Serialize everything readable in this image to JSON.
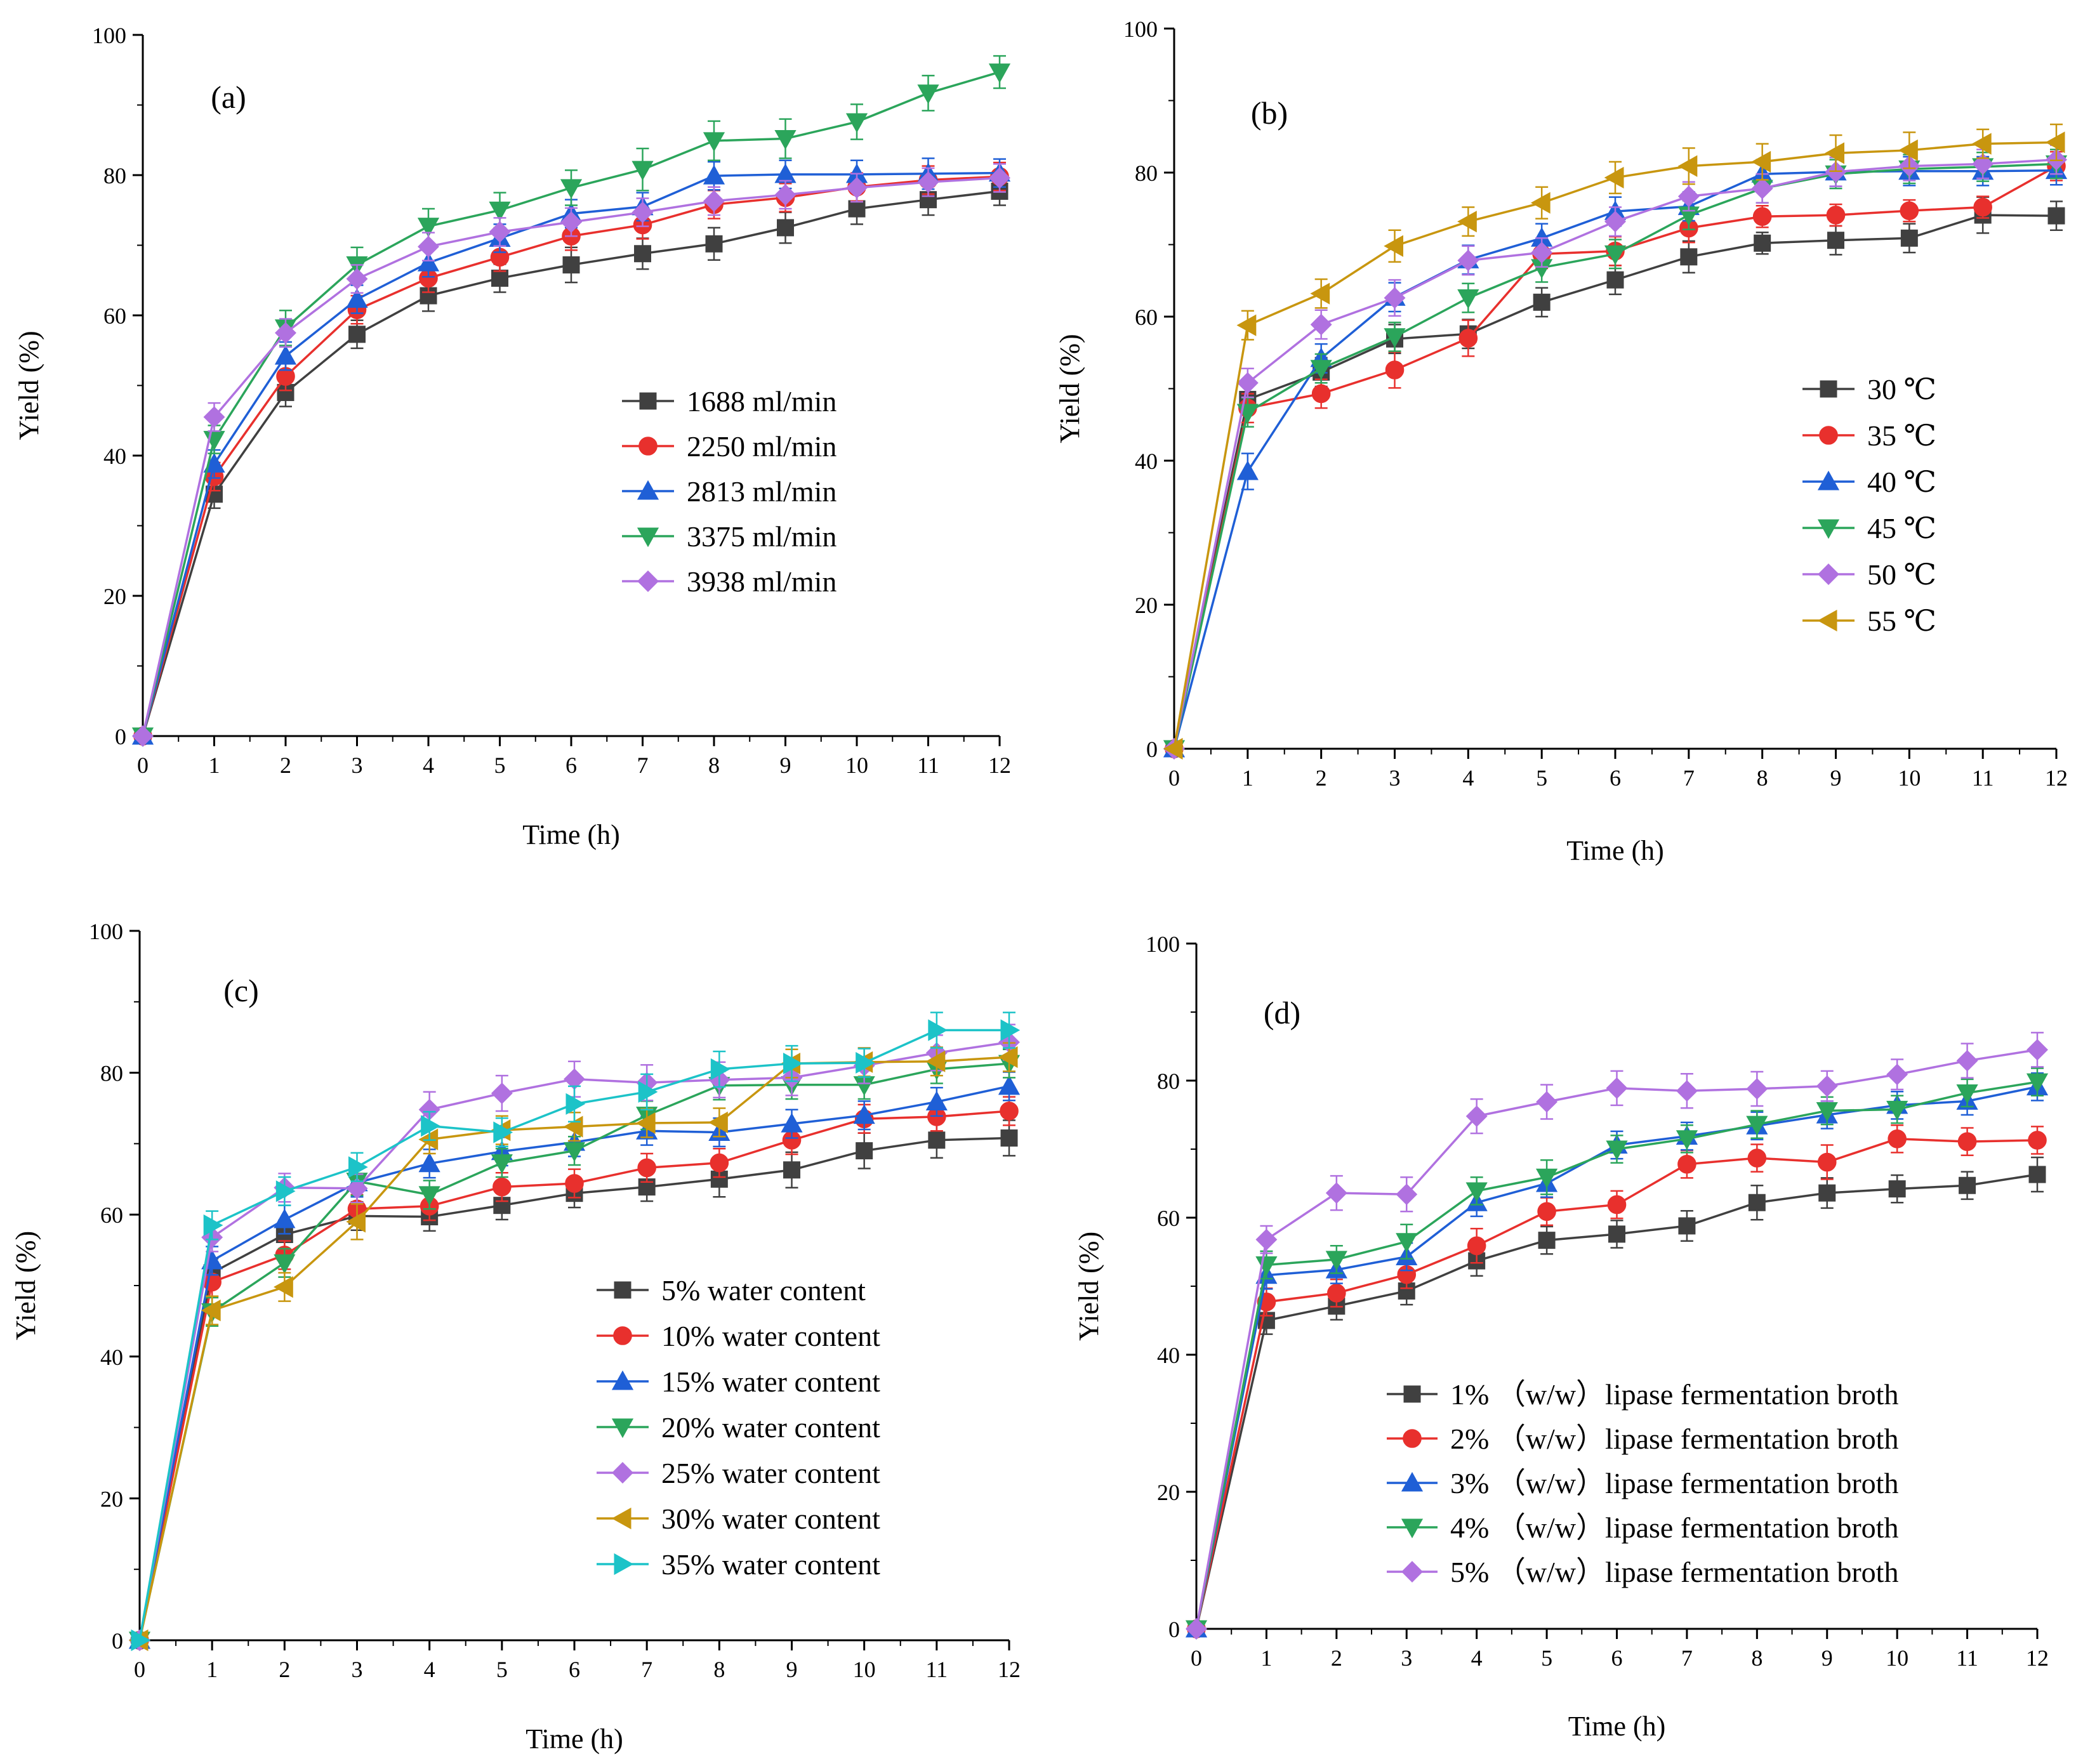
{
  "chart_data": [
    {
      "type": "line",
      "panel_label": "(a)",
      "xlabel": "Time (h)",
      "ylabel": "Yield (%)",
      "xlim": [
        0,
        12
      ],
      "ylim": [
        0,
        100
      ],
      "x_ticks": [
        "0",
        "1",
        "2",
        "3",
        "4",
        "5",
        "6",
        "7",
        "8",
        "9",
        "10",
        "11",
        "12"
      ],
      "y_ticks": [
        "0",
        "20",
        "40",
        "60",
        "80",
        "100"
      ],
      "legend_position": "center-right",
      "x": [
        0,
        1,
        2,
        3,
        4,
        5,
        6,
        7,
        8,
        9,
        10,
        11,
        12
      ],
      "series": [
        {
          "name": "1688 ml/min",
          "color": "#404040",
          "marker": "square",
          "values": [
            0,
            34.5,
            49,
            57.3,
            62.8,
            65.3,
            67.2,
            68.8,
            70.2,
            72.5,
            75.2,
            76.5,
            77.7
          ],
          "errors": [
            0,
            2,
            2,
            2,
            2.2,
            2,
            2.5,
            2.2,
            2.3,
            2.2,
            2.2,
            2.2,
            2
          ]
        },
        {
          "name": "2250 ml/min",
          "color": "#e8302d",
          "marker": "circle",
          "values": [
            0,
            37,
            51.3,
            60.8,
            65.3,
            68.3,
            71.3,
            72.9,
            75.8,
            76.8,
            78.3,
            79.3,
            79.8
          ],
          "errors": [
            0,
            2,
            2,
            2,
            2,
            2,
            2,
            2,
            2,
            2,
            2,
            2,
            2
          ]
        },
        {
          "name": "2813 ml/min",
          "color": "#1f5fd6",
          "marker": "triangle-up",
          "values": [
            0,
            38.8,
            54.2,
            62.3,
            67.5,
            71,
            74.5,
            75.5,
            79.9,
            80.1,
            80.1,
            80.2,
            80.3
          ],
          "errors": [
            0,
            2,
            2,
            2,
            2,
            2,
            2,
            2,
            2,
            2,
            2,
            2.2,
            2
          ]
        },
        {
          "name": "3375 ml/min",
          "color": "#2ba55b",
          "marker": "triangle-down",
          "values": [
            0,
            42.3,
            58.2,
            67.2,
            72.7,
            75,
            78.2,
            80.8,
            84.9,
            85.2,
            87.6,
            91.7,
            94.7
          ],
          "errors": [
            0,
            2,
            2.5,
            2.5,
            2.5,
            2.5,
            2.5,
            3,
            2.8,
            2.8,
            2.5,
            2.5,
            2.3
          ]
        },
        {
          "name": "3938 ml/min",
          "color": "#b071e0",
          "marker": "diamond",
          "values": [
            0,
            45.5,
            57.5,
            65.2,
            69.8,
            71.9,
            73.3,
            74.7,
            76.3,
            77.2,
            78.2,
            79,
            79.6
          ],
          "errors": [
            0,
            2,
            2,
            2,
            2,
            2,
            2,
            2,
            2,
            2,
            2,
            2,
            2
          ]
        }
      ]
    },
    {
      "type": "line",
      "panel_label": "(b)",
      "xlabel": "Time (h)",
      "ylabel": "Yield (%)",
      "xlim": [
        0,
        12
      ],
      "ylim": [
        0,
        100
      ],
      "x_ticks": [
        "0",
        "1",
        "2",
        "3",
        "4",
        "5",
        "6",
        "7",
        "8",
        "9",
        "10",
        "11",
        "12"
      ],
      "y_ticks": [
        "0",
        "20",
        "40",
        "60",
        "80",
        "100"
      ],
      "legend_position": "center-right",
      "x": [
        0,
        1,
        2,
        3,
        4,
        5,
        6,
        7,
        8,
        9,
        10,
        11,
        12
      ],
      "series": [
        {
          "name": "30 ℃",
          "color": "#404040",
          "marker": "square",
          "values": [
            0,
            48.5,
            52.3,
            56.9,
            57.6,
            62,
            65.1,
            68.3,
            70.2,
            70.6,
            70.9,
            74.1,
            74
          ],
          "errors": [
            0,
            2,
            2,
            2,
            2,
            2,
            2,
            2.2,
            1.5,
            2,
            2,
            2.5,
            2
          ]
        },
        {
          "name": "35 ℃",
          "color": "#e8302d",
          "marker": "circle",
          "values": [
            0,
            47.3,
            49.3,
            52.6,
            57,
            68.7,
            69.1,
            72.3,
            73.9,
            74.1,
            74.7,
            75.2,
            80.9
          ],
          "errors": [
            0,
            2,
            2,
            2.5,
            2.5,
            2,
            2,
            2,
            1.5,
            1.5,
            1.5,
            1.5,
            2
          ]
        },
        {
          "name": "40 ℃",
          "color": "#1f5fd6",
          "marker": "triangle-up",
          "values": [
            0,
            38.5,
            54.2,
            62.7,
            67.9,
            70.9,
            74.6,
            75.3,
            79.8,
            80.1,
            80.2,
            80.2,
            80.3
          ],
          "errors": [
            0,
            2.5,
            2,
            2,
            2,
            2,
            2,
            2,
            2,
            2,
            2,
            2,
            2
          ]
        },
        {
          "name": "45 ℃",
          "color": "#2ba55b",
          "marker": "triangle-down",
          "values": [
            0,
            46.7,
            52.8,
            57.2,
            62.6,
            66.8,
            68.7,
            74.1,
            77.8,
            79.8,
            80.5,
            80.8,
            81.2
          ],
          "errors": [
            0,
            2,
            2,
            2,
            2,
            2,
            2,
            2,
            2,
            2,
            2,
            2,
            2
          ]
        },
        {
          "name": "50 ℃",
          "color": "#b071e0",
          "marker": "diamond",
          "values": [
            0,
            50.8,
            58.9,
            62.6,
            67.8,
            68.9,
            73.2,
            76.7,
            77.8,
            80.1,
            80.9,
            81.2,
            81.8
          ],
          "errors": [
            0,
            2,
            2,
            2.5,
            2,
            2,
            2,
            2,
            2,
            2,
            2,
            2,
            2
          ]
        },
        {
          "name": "55 ℃",
          "color": "#c8960f",
          "marker": "triangle-left",
          "values": [
            0,
            58.8,
            63.2,
            69.8,
            73.2,
            75.8,
            79.3,
            80.9,
            81.5,
            82.7,
            83.1,
            84,
            84.2
          ],
          "errors": [
            0,
            2,
            2,
            2.2,
            2,
            2.2,
            2.2,
            2.5,
            2.5,
            2.5,
            2.5,
            2,
            2.5
          ]
        }
      ]
    },
    {
      "type": "line",
      "panel_label": "(c)",
      "xlabel": "Time (h)",
      "ylabel": "Yield (%)",
      "xlim": [
        0,
        12
      ],
      "ylim": [
        0,
        100
      ],
      "x_ticks": [
        "0",
        "1",
        "2",
        "3",
        "4",
        "5",
        "6",
        "7",
        "8",
        "9",
        "10",
        "11",
        "12"
      ],
      "y_ticks": [
        "0",
        "20",
        "40",
        "60",
        "80",
        "100"
      ],
      "legend_position": "bottom-right",
      "x": [
        0,
        1,
        2,
        3,
        4,
        5,
        6,
        7,
        8,
        9,
        10,
        11,
        12
      ],
      "series": [
        {
          "name": "5% water content",
          "color": "#404040",
          "marker": "square",
          "values": [
            0,
            51.8,
            57.2,
            59.8,
            59.7,
            61.3,
            63,
            63.9,
            65,
            66.3,
            69,
            70.5,
            70.8
          ],
          "errors": [
            0,
            2,
            2,
            2,
            2,
            2,
            2,
            2,
            2.5,
            2.5,
            2.5,
            2.5,
            2.5
          ]
        },
        {
          "name": "10% water content",
          "color": "#e8302d",
          "marker": "circle",
          "values": [
            0,
            50.5,
            54.3,
            60.8,
            61.2,
            63.9,
            64.4,
            66.6,
            67.3,
            70.5,
            73.5,
            73.8,
            74.6
          ],
          "errors": [
            0,
            2,
            2,
            2,
            2,
            2,
            2,
            2,
            2,
            2,
            2,
            2,
            2
          ]
        },
        {
          "name": "15% water content",
          "color": "#1f5fd6",
          "marker": "triangle-up",
          "values": [
            0,
            53.5,
            59.3,
            64.5,
            67.2,
            68.9,
            70.2,
            71.8,
            71.6,
            72.8,
            74,
            75.9,
            78.1
          ],
          "errors": [
            0,
            2,
            2,
            2,
            2,
            2,
            2,
            2,
            2,
            2,
            2,
            2,
            2
          ]
        },
        {
          "name": "20% water content",
          "color": "#2ba55b",
          "marker": "triangle-down",
          "values": [
            0,
            46.3,
            53.2,
            64.7,
            62.8,
            67.3,
            69,
            74,
            78.2,
            78.3,
            78.3,
            80.5,
            81.3
          ],
          "errors": [
            0,
            2,
            2,
            2,
            2,
            2,
            2,
            2,
            2,
            2,
            2,
            2,
            2
          ]
        },
        {
          "name": "25% water content",
          "color": "#b071e0",
          "marker": "diamond",
          "values": [
            0,
            56.8,
            63.8,
            63.7,
            74.8,
            77.1,
            79.1,
            78.6,
            79,
            79.3,
            81,
            82.8,
            84.3
          ],
          "errors": [
            0,
            2,
            2,
            2,
            2.5,
            2.5,
            2.5,
            2.5,
            2.5,
            2.5,
            2.5,
            2.5,
            2.5
          ]
        },
        {
          "name": "30% water content",
          "color": "#c8960f",
          "marker": "triangle-left",
          "values": [
            0,
            46.5,
            49.8,
            59,
            70.6,
            71.9,
            72.4,
            72.9,
            73,
            81.3,
            81.5,
            81.6,
            82.2
          ],
          "errors": [
            0,
            2,
            2,
            2.5,
            2,
            2,
            2,
            2,
            2,
            2,
            2,
            2,
            2
          ]
        },
        {
          "name": "35% water content",
          "color": "#1cc3c8",
          "marker": "triangle-right",
          "values": [
            0,
            58.5,
            63.3,
            66.7,
            72.5,
            71.6,
            75.6,
            77.3,
            80.5,
            81.3,
            81.4,
            86,
            86
          ],
          "errors": [
            0,
            2,
            2,
            2,
            2,
            2,
            2.5,
            2.5,
            2.5,
            2.5,
            2,
            2.5,
            2.5
          ]
        }
      ]
    },
    {
      "type": "line",
      "panel_label": "(d)",
      "xlabel": "Time (h)",
      "ylabel": "Yield (%)",
      "xlim": [
        0,
        12
      ],
      "ylim": [
        0,
        100
      ],
      "x_ticks": [
        "0",
        "1",
        "2",
        "3",
        "4",
        "5",
        "6",
        "7",
        "8",
        "9",
        "10",
        "11",
        "12"
      ],
      "y_ticks": [
        "0",
        "20",
        "40",
        "60",
        "80",
        "100"
      ],
      "legend_position": "bottom-right",
      "x": [
        0,
        1,
        2,
        3,
        4,
        5,
        6,
        7,
        8,
        9,
        10,
        11,
        12
      ],
      "series": [
        {
          "name": "1% （w/w）lipase fermentation broth",
          "color": "#404040",
          "marker": "square",
          "values": [
            0,
            45,
            47.1,
            49.3,
            53.7,
            56.7,
            57.6,
            58.8,
            62.2,
            63.6,
            64.2,
            64.7,
            66.3
          ],
          "errors": [
            0,
            2,
            2,
            2,
            2.2,
            2,
            2,
            2.2,
            2.5,
            2.2,
            2,
            2,
            2.5
          ]
        },
        {
          "name": "2% （w/w）lipase fermentation broth",
          "color": "#e8302d",
          "marker": "circle",
          "values": [
            0,
            47.7,
            49,
            51.7,
            55.9,
            60.9,
            61.9,
            67.8,
            68.7,
            68.1,
            71.5,
            71.1,
            71.3
          ],
          "errors": [
            0,
            2,
            2,
            2,
            2.5,
            2,
            2,
            2,
            2,
            2.5,
            2,
            2,
            2
          ]
        },
        {
          "name": "3% （w/w）lipase fermentation broth",
          "color": "#1f5fd6",
          "marker": "triangle-up",
          "values": [
            0,
            51.6,
            52.4,
            54.3,
            62.2,
            65,
            70.6,
            71.9,
            73.4,
            75,
            76.4,
            77,
            79.1
          ],
          "errors": [
            0,
            2,
            2,
            2,
            2,
            2,
            2,
            2,
            2,
            2,
            2,
            2,
            2
          ]
        },
        {
          "name": "4% （w/w）lipase fermentation broth",
          "color": "#2ba55b",
          "marker": "triangle-down",
          "values": [
            0,
            53.1,
            53.9,
            56.5,
            63.9,
            65.9,
            70,
            71.5,
            73.6,
            75.6,
            75.8,
            78.2,
            79.8
          ],
          "errors": [
            0,
            2,
            2,
            2.5,
            2,
            2.5,
            2,
            2,
            2,
            2,
            2,
            2,
            2
          ]
        },
        {
          "name": "5% （w/w）lipase fermentation broth",
          "color": "#b071e0",
          "marker": "diamond",
          "values": [
            0,
            56.8,
            63.6,
            63.4,
            74.8,
            76.9,
            78.9,
            78.5,
            78.8,
            79.2,
            80.9,
            82.9,
            84.5
          ],
          "errors": [
            0,
            2,
            2.5,
            2.5,
            2.5,
            2.5,
            2.5,
            2.5,
            2.5,
            2.2,
            2.2,
            2.5,
            2.5
          ]
        }
      ]
    }
  ]
}
